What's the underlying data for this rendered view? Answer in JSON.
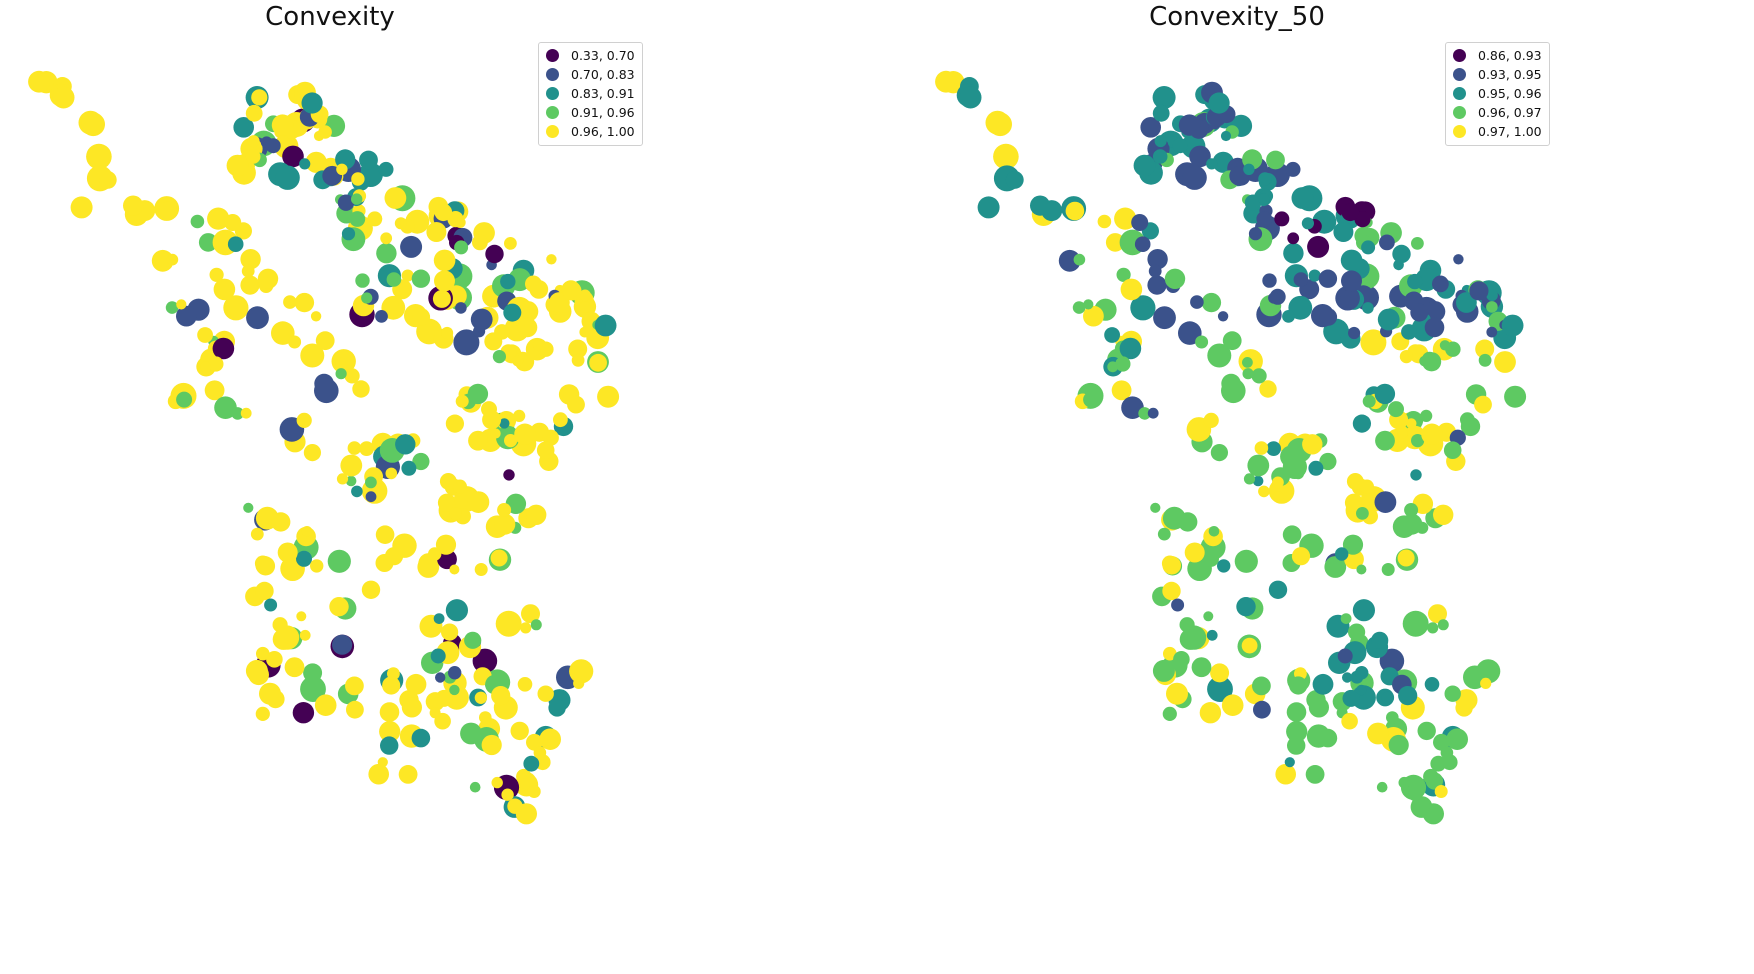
{
  "maps": [
    {
      "title": "Convexity",
      "legend": [
        {
          "label": "0.33, 0.70",
          "color": "#440154"
        },
        {
          "label": "0.70, 0.83",
          "color": "#3b528b"
        },
        {
          "label": "0.83, 0.91",
          "color": "#21918c"
        },
        {
          "label": "0.91, 0.96",
          "color": "#5ec962"
        },
        {
          "label": "0.96, 1.00",
          "color": "#fde725"
        }
      ]
    },
    {
      "title": "Convexity_50",
      "legend": [
        {
          "label": "0.86, 0.93",
          "color": "#440154"
        },
        {
          "label": "0.93, 0.95",
          "color": "#3b528b"
        },
        {
          "label": "0.95, 0.96",
          "color": "#21918c"
        },
        {
          "label": "0.96, 0.97",
          "color": "#5ec962"
        },
        {
          "label": "0.97, 1.00",
          "color": "#fde725"
        }
      ]
    }
  ]
}
